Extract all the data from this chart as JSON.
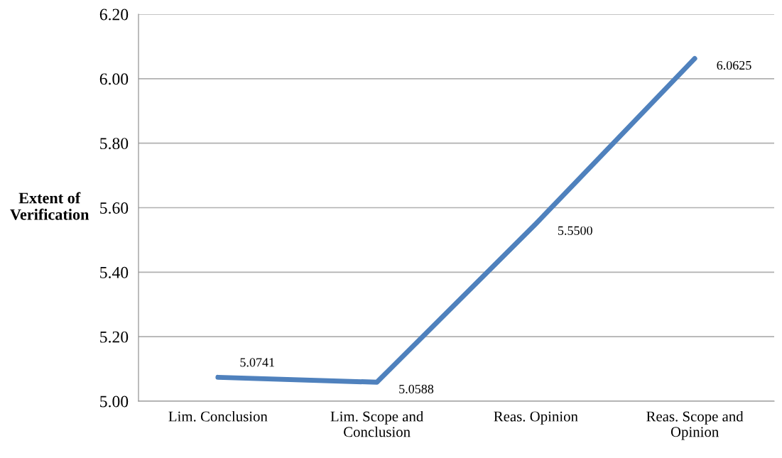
{
  "chart_data": {
    "type": "line",
    "ylabel": "Extent of\nVerification",
    "categories": [
      "Lim. Conclusion",
      "Lim. Scope and\nConclusion",
      "Reas. Opinion",
      "Reas. Scope and\nOpinion"
    ],
    "series": [
      {
        "color": "#4f81bd",
        "values": [
          5.0741,
          5.0588,
          5.55,
          6.0625
        ],
        "value_labels": [
          "5.0741",
          "5.0588",
          "5.5500",
          "6.0625"
        ]
      }
    ],
    "ylim": [
      5.0,
      6.2
    ],
    "yticks": [
      {
        "value": 5.0,
        "label": "5.00"
      },
      {
        "value": 5.2,
        "label": "5.20"
      },
      {
        "value": 5.4,
        "label": "5.40"
      },
      {
        "value": 5.6,
        "label": "5.60"
      },
      {
        "value": 5.8,
        "label": "5.80"
      },
      {
        "value": 6.0,
        "label": "6.00"
      },
      {
        "value": 6.2,
        "label": "6.20"
      }
    ],
    "grid": "y",
    "marker": "none",
    "line_style": "solid"
  }
}
